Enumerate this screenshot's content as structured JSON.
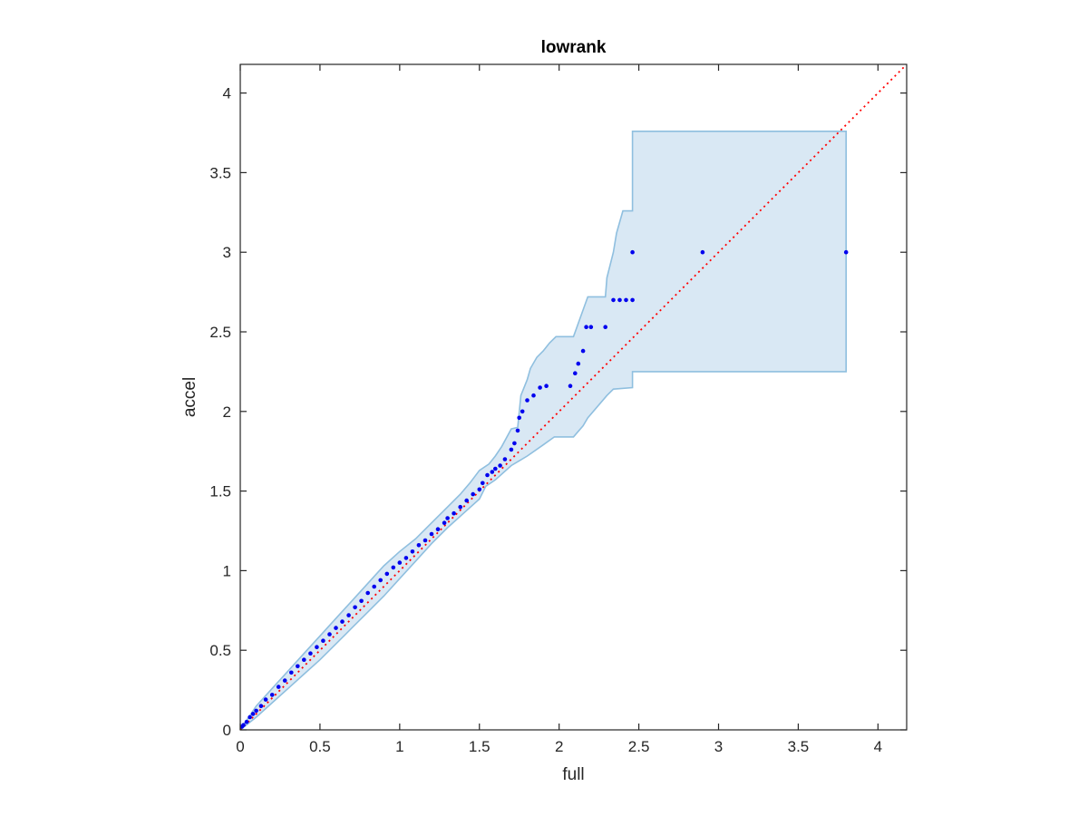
{
  "chart_data": {
    "type": "scatter",
    "title": "lowrank",
    "xlabel": "full",
    "ylabel": "accel",
    "xlim": [
      0,
      4.18
    ],
    "ylim": [
      0,
      4.18
    ],
    "xticks": [
      0,
      0.5,
      1,
      1.5,
      2,
      2.5,
      3,
      3.5,
      4
    ],
    "yticks": [
      0,
      0.5,
      1,
      1.5,
      2,
      2.5,
      3,
      3.5,
      4
    ],
    "xtick_labels": [
      "0",
      "0.5",
      "1",
      "1.5",
      "2",
      "2.5",
      "3",
      "3.5",
      "4"
    ],
    "ytick_labels": [
      "0",
      "0.5",
      "1",
      "1.5",
      "2",
      "2.5",
      "3",
      "3.5",
      "4"
    ],
    "grid": false,
    "legend": "none",
    "reference_line": {
      "style": "dotted",
      "color": "#ff0000",
      "from": [
        0,
        0
      ],
      "to": [
        4.18,
        4.18
      ]
    },
    "band": {
      "fill_color": "#d9e8f4",
      "edge_color": "#8fbfdf",
      "upper": [
        [
          0,
          0
        ],
        [
          0.1,
          0.15
        ],
        [
          0.2,
          0.26
        ],
        [
          0.3,
          0.37
        ],
        [
          0.4,
          0.48
        ],
        [
          0.5,
          0.59
        ],
        [
          0.6,
          0.7
        ],
        [
          0.7,
          0.81
        ],
        [
          0.8,
          0.92
        ],
        [
          0.9,
          1.03
        ],
        [
          1.0,
          1.12
        ],
        [
          1.1,
          1.2
        ],
        [
          1.2,
          1.3
        ],
        [
          1.3,
          1.4
        ],
        [
          1.38,
          1.48
        ],
        [
          1.44,
          1.55
        ],
        [
          1.5,
          1.63
        ],
        [
          1.56,
          1.67
        ],
        [
          1.6,
          1.72
        ],
        [
          1.64,
          1.78
        ],
        [
          1.7,
          1.89
        ],
        [
          1.74,
          1.9
        ],
        [
          1.76,
          2.1
        ],
        [
          1.8,
          2.2
        ],
        [
          1.82,
          2.27
        ],
        [
          1.86,
          2.34
        ],
        [
          1.9,
          2.38
        ],
        [
          1.94,
          2.43
        ],
        [
          1.98,
          2.47
        ],
        [
          2.09,
          2.47
        ],
        [
          2.18,
          2.72
        ],
        [
          2.29,
          2.72
        ],
        [
          2.3,
          2.84
        ],
        [
          2.34,
          3.0
        ],
        [
          2.36,
          3.12
        ],
        [
          2.4,
          3.26
        ],
        [
          2.46,
          3.26
        ],
        [
          2.46,
          3.76
        ],
        [
          3.8,
          3.76
        ]
      ],
      "lower": [
        [
          3.8,
          2.25
        ],
        [
          2.46,
          2.25
        ],
        [
          2.46,
          2.15
        ],
        [
          2.34,
          2.14
        ],
        [
          2.3,
          2.1
        ],
        [
          2.18,
          1.96
        ],
        [
          2.15,
          1.91
        ],
        [
          2.09,
          1.84
        ],
        [
          1.97,
          1.84
        ],
        [
          1.9,
          1.79
        ],
        [
          1.8,
          1.72
        ],
        [
          1.7,
          1.66
        ],
        [
          1.6,
          1.57
        ],
        [
          1.54,
          1.53
        ],
        [
          1.5,
          1.45
        ],
        [
          1.4,
          1.36
        ],
        [
          1.3,
          1.27
        ],
        [
          1.2,
          1.17
        ],
        [
          1.1,
          1.06
        ],
        [
          1.0,
          0.95
        ],
        [
          0.9,
          0.84
        ],
        [
          0.8,
          0.74
        ],
        [
          0.7,
          0.64
        ],
        [
          0.6,
          0.54
        ],
        [
          0.5,
          0.44
        ],
        [
          0.4,
          0.35
        ],
        [
          0.3,
          0.26
        ],
        [
          0.2,
          0.17
        ],
        [
          0.1,
          0.08
        ],
        [
          0,
          0
        ]
      ]
    },
    "series": [
      {
        "color": "#0000ee",
        "marker": "dot",
        "points": [
          [
            0.01,
            0.02
          ],
          [
            0.02,
            0.03
          ],
          [
            0.04,
            0.05
          ],
          [
            0.06,
            0.08
          ],
          [
            0.08,
            0.1
          ],
          [
            0.1,
            0.12
          ],
          [
            0.13,
            0.15
          ],
          [
            0.16,
            0.19
          ],
          [
            0.2,
            0.22
          ],
          [
            0.24,
            0.27
          ],
          [
            0.28,
            0.31
          ],
          [
            0.32,
            0.36
          ],
          [
            0.36,
            0.4
          ],
          [
            0.4,
            0.44
          ],
          [
            0.44,
            0.48
          ],
          [
            0.48,
            0.52
          ],
          [
            0.52,
            0.56
          ],
          [
            0.56,
            0.6
          ],
          [
            0.6,
            0.64
          ],
          [
            0.64,
            0.68
          ],
          [
            0.68,
            0.72
          ],
          [
            0.72,
            0.77
          ],
          [
            0.76,
            0.81
          ],
          [
            0.8,
            0.86
          ],
          [
            0.84,
            0.9
          ],
          [
            0.88,
            0.94
          ],
          [
            0.92,
            0.98
          ],
          [
            0.96,
            1.02
          ],
          [
            1.0,
            1.05
          ],
          [
            1.04,
            1.08
          ],
          [
            1.08,
            1.12
          ],
          [
            1.12,
            1.16
          ],
          [
            1.16,
            1.19
          ],
          [
            1.2,
            1.23
          ],
          [
            1.24,
            1.26
          ],
          [
            1.28,
            1.3
          ],
          [
            1.3,
            1.33
          ],
          [
            1.34,
            1.36
          ],
          [
            1.38,
            1.4
          ],
          [
            1.42,
            1.44
          ],
          [
            1.46,
            1.48
          ],
          [
            1.5,
            1.51
          ],
          [
            1.52,
            1.55
          ],
          [
            1.55,
            1.6
          ],
          [
            1.58,
            1.62
          ],
          [
            1.6,
            1.64
          ],
          [
            1.63,
            1.66
          ],
          [
            1.66,
            1.7
          ],
          [
            1.7,
            1.76
          ],
          [
            1.72,
            1.8
          ],
          [
            1.74,
            1.88
          ],
          [
            1.75,
            1.96
          ],
          [
            1.77,
            2.0
          ],
          [
            1.8,
            2.07
          ],
          [
            1.84,
            2.1
          ],
          [
            1.88,
            2.15
          ],
          [
            1.92,
            2.16
          ],
          [
            2.07,
            2.16
          ],
          [
            2.1,
            2.24
          ],
          [
            2.12,
            2.3
          ],
          [
            2.15,
            2.38
          ],
          [
            2.17,
            2.53
          ],
          [
            2.2,
            2.53
          ],
          [
            2.29,
            2.53
          ],
          [
            2.34,
            2.7
          ],
          [
            2.38,
            2.7
          ],
          [
            2.42,
            2.7
          ],
          [
            2.46,
            2.7
          ],
          [
            2.46,
            3.0
          ],
          [
            2.9,
            3.0
          ],
          [
            3.8,
            3.0
          ]
        ]
      }
    ]
  }
}
